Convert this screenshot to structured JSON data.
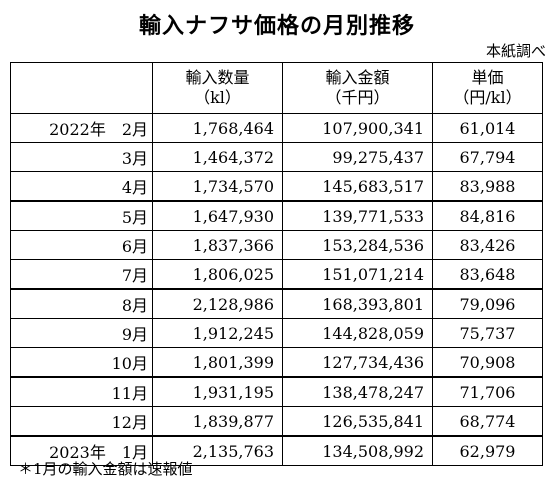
{
  "title": "輸入ナフサ価格の月別推移",
  "source_note": "本紙調べ",
  "headers": [
    {
      "line1": "",
      "line2": ""
    },
    {
      "line1": "輸入数量",
      "line2": "（kl）"
    },
    {
      "line1": "輸入金額",
      "line2": "（千円）"
    },
    {
      "line1": "単価",
      "line2": "（円/kl）"
    }
  ],
  "rows": [
    {
      "period": "2022年　2月",
      "volume": "1,768,464",
      "amount": "107,900,341",
      "price": "61,014"
    },
    {
      "period": "3月",
      "volume": "1,464,372",
      "amount": "99,275,437",
      "price": "67,794"
    },
    {
      "period": "4月",
      "volume": "1,734,570",
      "amount": "145,683,517",
      "price": "83,988"
    },
    {
      "period": "5月",
      "volume": "1,647,930",
      "amount": "139,771,533",
      "price": "84,816"
    },
    {
      "period": "6月",
      "volume": "1,837,366",
      "amount": "153,284,536",
      "price": "83,426"
    },
    {
      "period": "7月",
      "volume": "1,806,025",
      "amount": "151,071,214",
      "price": "83,648"
    },
    {
      "period": "8月",
      "volume": "2,128,986",
      "amount": "168,393,801",
      "price": "79,096"
    },
    {
      "period": "9月",
      "volume": "1,912,245",
      "amount": "144,828,059",
      "price": "75,737"
    },
    {
      "period": "10月",
      "volume": "1,801,399",
      "amount": "127,734,436",
      "price": "70,908"
    },
    {
      "period": "11月",
      "volume": "1,931,195",
      "amount": "138,478,247",
      "price": "71,706"
    },
    {
      "period": "12月",
      "volume": "1,839,877",
      "amount": "126,535,841",
      "price": "68,774"
    },
    {
      "period": "2023年　1月",
      "volume": "2,135,763",
      "amount": "134,508,992",
      "price": "62,979"
    }
  ],
  "footnote": "＊1月の輸入金額は速報値"
}
